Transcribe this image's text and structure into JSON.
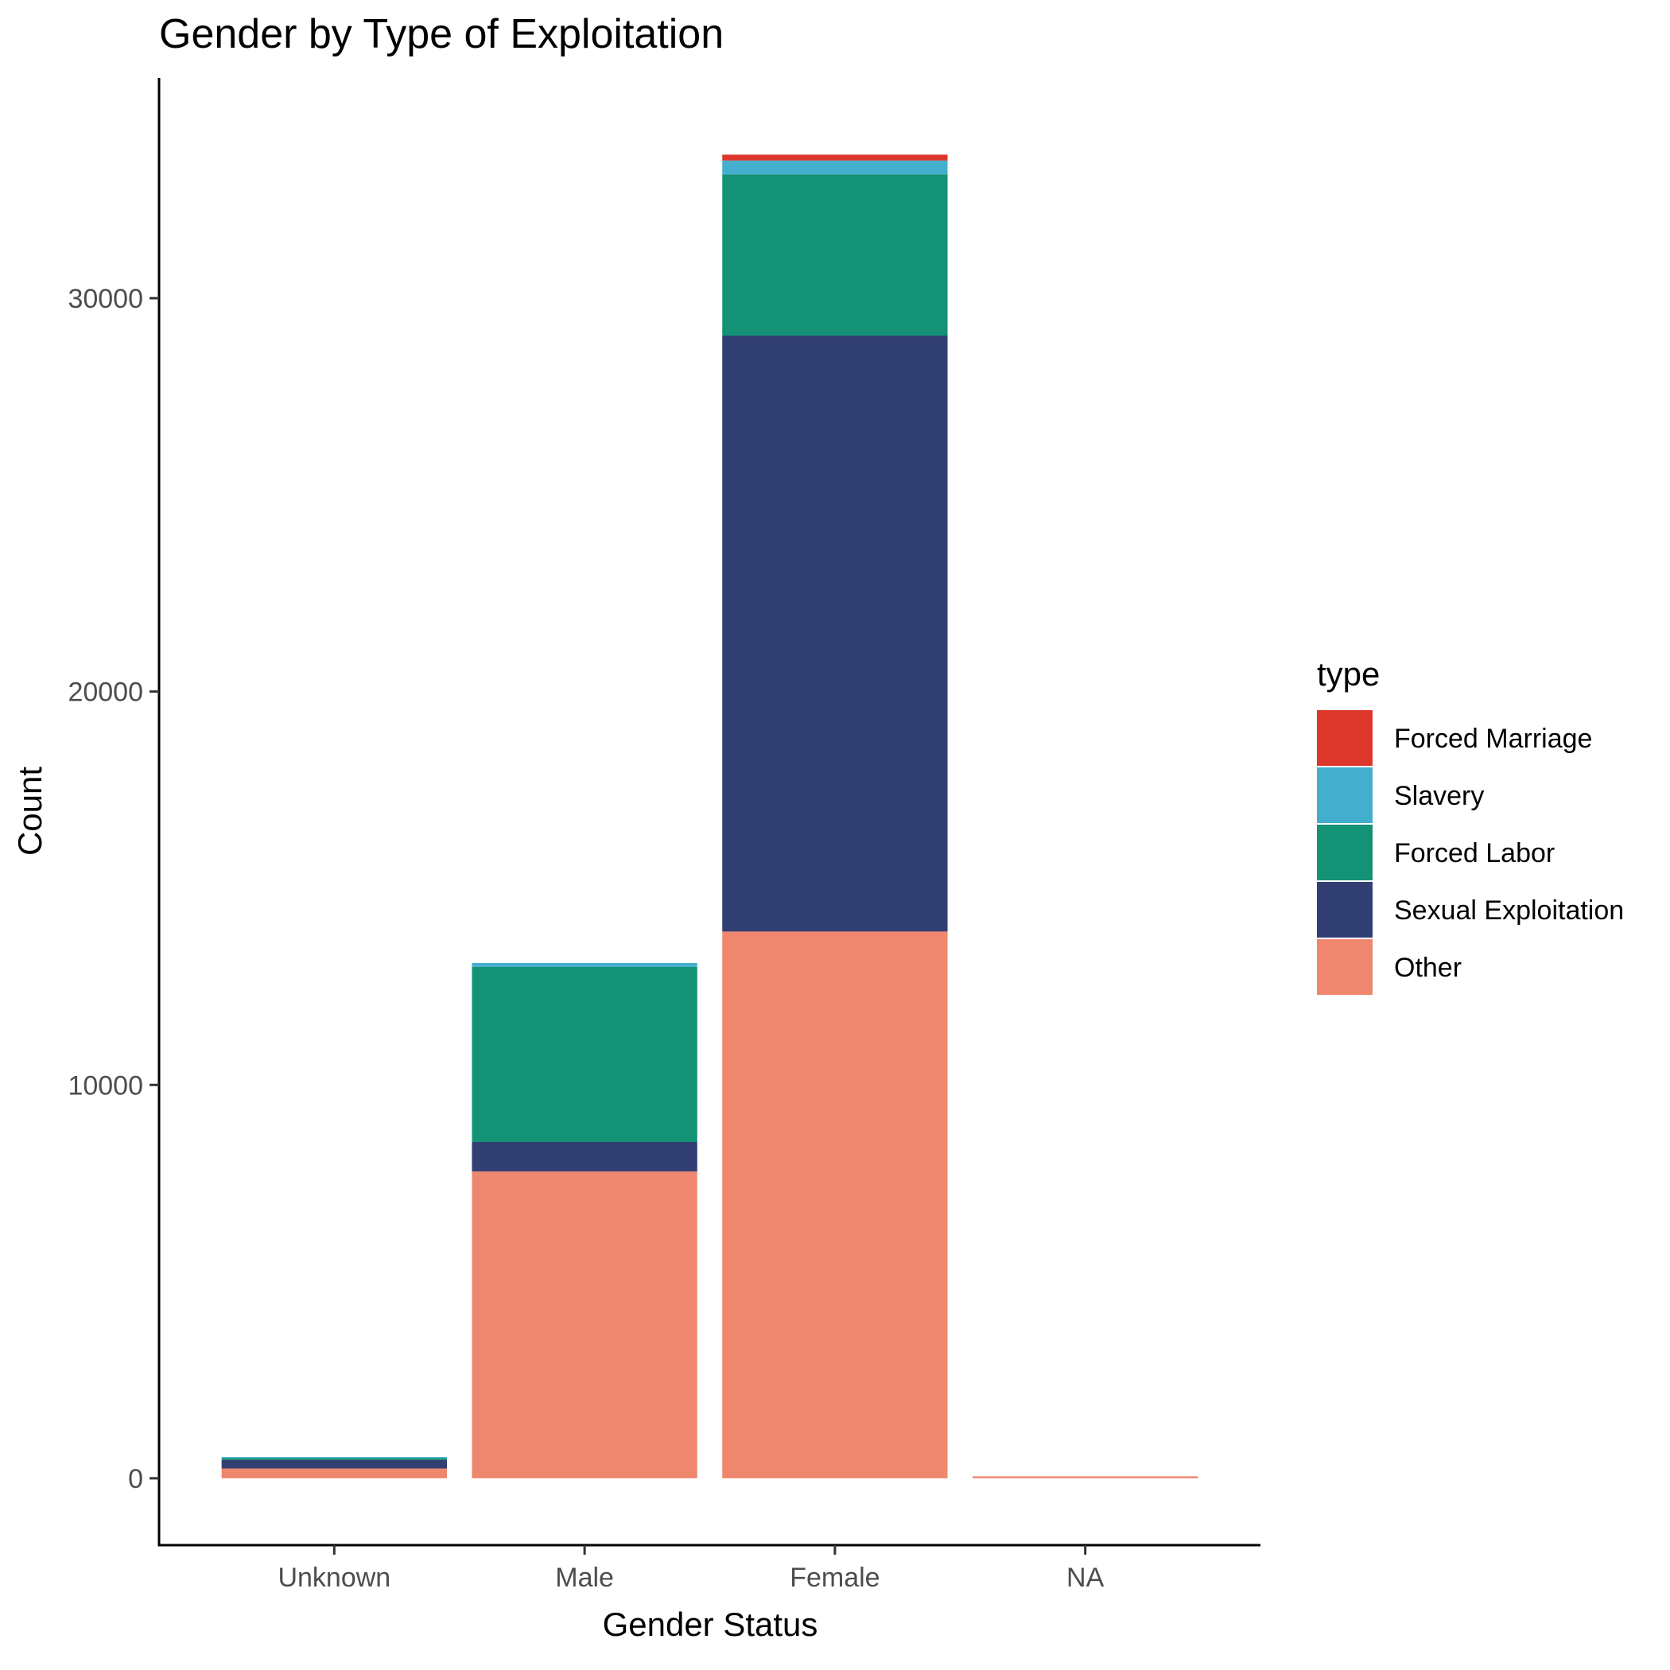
{
  "chart_data": {
    "type": "bar",
    "stacked": true,
    "title": "Gender by Type of Exploitation",
    "xlabel": "Gender Status",
    "ylabel": "Count",
    "categories": [
      "Unknown",
      "Male",
      "Female",
      "NA"
    ],
    "ylim": [
      -1700,
      35600
    ],
    "yticks": [
      0,
      10000,
      20000,
      30000
    ],
    "ytick_labels": [
      "0",
      "10000",
      "20000",
      "30000"
    ],
    "legend_title": "type",
    "legend_position": "right",
    "series": [
      {
        "name": "Other",
        "color": "#EE876E",
        "values": [
          250,
          7800,
          13900,
          50
        ]
      },
      {
        "name": "Sexual Exploitation",
        "color": "#313F73",
        "values": [
          220,
          750,
          15150,
          0
        ]
      },
      {
        "name": "Forced Labor",
        "color": "#139275",
        "values": [
          60,
          4450,
          4100,
          0
        ]
      },
      {
        "name": "Slavery",
        "color": "#44AFCC",
        "values": [
          10,
          100,
          350,
          0
        ]
      },
      {
        "name": "Forced Marriage",
        "color": "#DD372C",
        "values": [
          0,
          0,
          150,
          0
        ]
      }
    ],
    "legend_order": [
      "Forced Marriage",
      "Slavery",
      "Forced Labor",
      "Sexual Exploitation",
      "Other"
    ]
  }
}
